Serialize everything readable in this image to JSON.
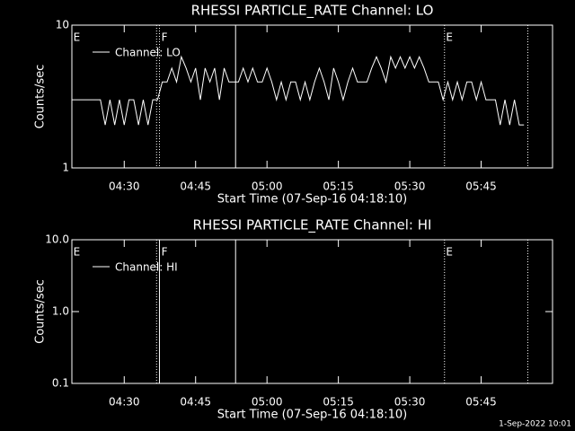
{
  "chart_data": [
    {
      "type": "line",
      "title": "RHESSI PARTICLE_RATE Channel: LO",
      "xlabel": "Start Time (07-Sep-16 04:18:10)",
      "ylabel": "Counts/sec",
      "log_y": true,
      "ylim": [
        1,
        10
      ],
      "yticks": [
        1,
        10
      ],
      "xlim": [
        259,
        360
      ],
      "xticks": [
        {
          "value": 270,
          "label": "04:30"
        },
        {
          "value": 285,
          "label": "04:45"
        },
        {
          "value": 300,
          "label": "05:00"
        },
        {
          "value": 315,
          "label": "05:15"
        },
        {
          "value": 330,
          "label": "05:30"
        },
        {
          "value": 345,
          "label": "05:45"
        }
      ],
      "series": [
        {
          "name": "Channel: LO",
          "color": "#ffffff",
          "x": [
            259,
            260,
            261,
            262,
            263,
            264,
            265,
            266,
            267,
            268,
            269,
            270,
            271,
            272,
            273,
            274,
            275,
            276,
            277,
            278,
            279,
            280,
            281,
            282,
            283,
            284,
            285,
            286,
            287,
            288,
            289,
            290,
            291,
            292,
            293,
            294,
            295,
            296,
            297,
            298,
            299,
            300,
            301,
            302,
            303,
            304,
            305,
            306,
            307,
            308,
            309,
            310,
            311,
            312,
            313,
            314,
            315,
            316,
            317,
            318,
            319,
            320,
            321,
            322,
            323,
            324,
            325,
            326,
            327,
            328,
            329,
            330,
            331,
            332,
            333,
            334,
            335,
            336,
            337,
            338,
            339,
            340,
            341,
            342,
            343,
            344,
            345,
            346,
            347,
            348,
            349,
            350,
            351,
            352,
            353,
            354
          ],
          "values": [
            3,
            3,
            3,
            3,
            3,
            3,
            3,
            2,
            3,
            2,
            3,
            2,
            3,
            3,
            2,
            3,
            2,
            3,
            3,
            4,
            4,
            5,
            4,
            6,
            5,
            4,
            5,
            3,
            5,
            4,
            5,
            3,
            5,
            4,
            4,
            4,
            5,
            4,
            5,
            4,
            4,
            5,
            4,
            3,
            4,
            3,
            4,
            4,
            3,
            4,
            3,
            4,
            5,
            4,
            3,
            5,
            4,
            3,
            4,
            5,
            4,
            4,
            4,
            5,
            6,
            5,
            4,
            6,
            5,
            6,
            5,
            6,
            5,
            6,
            5,
            4,
            4,
            4,
            3,
            4,
            3,
            4,
            3,
            4,
            4,
            3,
            4,
            3,
            3,
            3,
            2,
            3,
            2,
            3,
            2,
            2
          ]
        }
      ],
      "vlines": [
        {
          "x": 276.8,
          "style": "dotted"
        },
        {
          "x": 277.4,
          "style": "dotted"
        },
        {
          "x": 293.4,
          "style": "solid"
        },
        {
          "x": 337.3,
          "style": "dotted"
        },
        {
          "x": 354.8,
          "style": "dotted"
        }
      ],
      "annotations": [
        {
          "text": "E",
          "x": 259.3
        },
        {
          "text": "F",
          "x": 277.8
        },
        {
          "text": "E",
          "x": 337.6
        }
      ]
    },
    {
      "type": "line",
      "title": "RHESSI PARTICLE_RATE Channel: HI",
      "xlabel": "Start Time (07-Sep-16 04:18:10)",
      "ylabel": "Counts/sec",
      "log_y": true,
      "ylim": [
        0.1,
        10
      ],
      "yticks": [
        {
          "value": 0.1,
          "label": "0.1"
        },
        {
          "value": 1,
          "label": "1.0"
        },
        {
          "value": 10,
          "label": "10.0"
        }
      ],
      "xlim": [
        259,
        360
      ],
      "xticks": [
        {
          "value": 270,
          "label": "04:30"
        },
        {
          "value": 285,
          "label": "04:45"
        },
        {
          "value": 300,
          "label": "05:00"
        },
        {
          "value": 315,
          "label": "05:15"
        },
        {
          "value": 330,
          "label": "05:30"
        },
        {
          "value": 345,
          "label": "05:45"
        }
      ],
      "series": [
        {
          "name": "Channel: HI",
          "color": "#ffffff",
          "x": [],
          "values": []
        }
      ],
      "vlines": [
        {
          "x": 276.8,
          "style": "dotted"
        },
        {
          "x": 277.4,
          "style": "solid"
        },
        {
          "x": 293.4,
          "style": "solid"
        },
        {
          "x": 337.3,
          "style": "dotted"
        },
        {
          "x": 354.8,
          "style": "dotted"
        }
      ],
      "annotations": [
        {
          "text": "E",
          "x": 259.3
        },
        {
          "text": "F",
          "x": 277.8
        },
        {
          "text": "E",
          "x": 337.6
        }
      ]
    }
  ],
  "footer": "1-Sep-2022 10:01"
}
